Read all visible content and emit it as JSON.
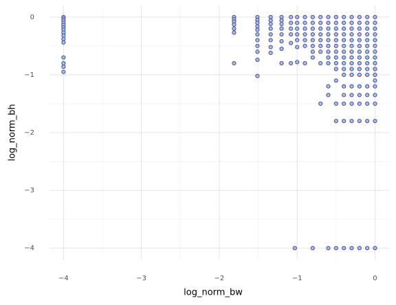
{
  "chart_data": {
    "type": "scatter",
    "x_label": "log_norm_bw",
    "y_label": "log_norm_bh",
    "x": [
      -4,
      -4,
      -4,
      -4,
      -4,
      -4,
      -4,
      -4,
      -4,
      -4,
      -4,
      -4,
      -4,
      -4,
      -4,
      -1.81,
      -1.81,
      -1.81,
      -1.81,
      -1.81,
      -1.81,
      -1.81,
      -1.51,
      -1.51,
      -1.51,
      -1.51,
      -1.51,
      -1.51,
      -1.51,
      -1.51,
      -1.51,
      -1.51,
      -1.51,
      -1.34,
      -1.34,
      -1.34,
      -1.34,
      -1.34,
      -1.34,
      -1.34,
      -1.34,
      -1.2,
      -1.2,
      -1.2,
      -1.2,
      -1.2,
      -1.2,
      -1.2,
      -1.2,
      -1.08,
      -1.08,
      -1.08,
      -1.08,
      -1.08,
      -1.08,
      -1,
      -1,
      -1,
      -1,
      -1,
      -1,
      -1,
      -0.9,
      -0.9,
      -0.9,
      -0.9,
      -0.9,
      -0.9,
      -0.9,
      -0.8,
      -0.8,
      -0.8,
      -0.8,
      -0.8,
      -0.8,
      -0.8,
      -0.8,
      -0.8,
      -0.7,
      -0.7,
      -0.7,
      -0.7,
      -0.7,
      -0.7,
      -0.7,
      -0.7,
      -0.7,
      -0.6,
      -0.6,
      -0.6,
      -0.6,
      -0.6,
      -0.6,
      -0.6,
      -0.6,
      -0.6,
      -0.6,
      -0.6,
      -0.6,
      -0.5,
      -0.5,
      -0.5,
      -0.5,
      -0.5,
      -0.5,
      -0.5,
      -0.5,
      -0.5,
      -0.5,
      -0.5,
      -0.5,
      -0.5,
      -0.5,
      -0.4,
      -0.4,
      -0.4,
      -0.4,
      -0.4,
      -0.4,
      -0.4,
      -0.4,
      -0.4,
      -0.4,
      -0.4,
      -0.4,
      -0.4,
      -0.4,
      -0.4,
      -0.4,
      -0.3,
      -0.3,
      -0.3,
      -0.3,
      -0.3,
      -0.3,
      -0.3,
      -0.3,
      -0.3,
      -0.3,
      -0.3,
      -0.3,
      -0.3,
      -0.3,
      -0.3,
      -0.3,
      -0.2,
      -0.2,
      -0.2,
      -0.2,
      -0.2,
      -0.2,
      -0.2,
      -0.2,
      -0.2,
      -0.2,
      -0.2,
      -0.2,
      -0.2,
      -0.2,
      -0.2,
      -0.2,
      -0.1,
      -0.1,
      -0.1,
      -0.1,
      -0.1,
      -0.1,
      -0.1,
      -0.1,
      -0.1,
      -0.1,
      -0.1,
      -0.1,
      -0.1,
      -0.1,
      -0.1,
      -0.1,
      0,
      0,
      0,
      0,
      0,
      0,
      0,
      0,
      0,
      0,
      0,
      0,
      0,
      0,
      0,
      0,
      0,
      -1.03
    ],
    "values": [
      0,
      -0.03,
      -0.06,
      -0.1,
      -0.14,
      -0.18,
      -0.22,
      -0.27,
      -0.32,
      -0.38,
      -0.44,
      -0.7,
      -0.8,
      -0.86,
      -0.95,
      0,
      -0.04,
      -0.08,
      -0.13,
      -0.2,
      -0.27,
      -0.8,
      0,
      -0.05,
      -0.1,
      -0.16,
      -0.22,
      -0.3,
      -0.4,
      -0.5,
      -0.6,
      -0.74,
      -1.02,
      0,
      -0.06,
      -0.12,
      -0.2,
      -0.3,
      -0.4,
      -0.52,
      -0.62,
      0,
      -0.06,
      -0.12,
      -0.2,
      -0.3,
      -0.42,
      -0.55,
      -0.8,
      0,
      -0.1,
      -0.2,
      -0.3,
      -0.45,
      -0.8,
      0,
      -0.1,
      -0.2,
      -0.3,
      -0.4,
      -0.52,
      -0.78,
      0,
      -0.1,
      -0.2,
      -0.3,
      -0.4,
      -0.5,
      -0.8,
      0,
      -0.1,
      -0.2,
      -0.3,
      -0.4,
      -0.5,
      -0.6,
      -0.7,
      -4,
      0,
      -0.1,
      -0.2,
      -0.3,
      -0.4,
      -0.5,
      -0.6,
      -0.8,
      -1.5,
      0,
      -0.1,
      -0.2,
      -0.3,
      -0.4,
      -0.5,
      -0.6,
      -0.7,
      -0.8,
      -1.2,
      -1.35,
      -4,
      0,
      -0.1,
      -0.2,
      -0.3,
      -0.4,
      -0.5,
      -0.6,
      -0.7,
      -0.8,
      -0.9,
      -1.1,
      -1.5,
      -1.8,
      -4,
      0,
      -0.1,
      -0.2,
      -0.3,
      -0.4,
      -0.5,
      -0.6,
      -0.7,
      -0.8,
      -0.9,
      -1,
      -1.2,
      -1.35,
      -1.5,
      -1.8,
      -4,
      0,
      -0.1,
      -0.2,
      -0.3,
      -0.4,
      -0.5,
      -0.6,
      -0.7,
      -0.8,
      -0.9,
      -1,
      -1.2,
      -1.35,
      -1.5,
      -1.8,
      -4,
      0,
      -0.1,
      -0.2,
      -0.3,
      -0.4,
      -0.5,
      -0.6,
      -0.7,
      -0.8,
      -0.9,
      -1,
      -1.2,
      -1.35,
      -1.5,
      -1.8,
      -4,
      0,
      -0.1,
      -0.2,
      -0.3,
      -0.4,
      -0.5,
      -0.6,
      -0.7,
      -0.8,
      -0.9,
      -1,
      -1.2,
      -1.35,
      -1.5,
      -1.8,
      -4,
      0,
      -0.1,
      -0.2,
      -0.3,
      -0.4,
      -0.5,
      -0.6,
      -0.7,
      -0.8,
      -0.9,
      -1,
      -1.1,
      -1.2,
      -1.35,
      -1.5,
      -1.8,
      -4,
      -4
    ],
    "color": "#87ceeb",
    "edge_color": "#6a3d9a",
    "xlim": [
      -4.18,
      0.19
    ],
    "ylim": [
      -4.2,
      0.2
    ],
    "xticks": [
      {
        "value": -4,
        "label": "−4"
      },
      {
        "value": -3,
        "label": "−3"
      },
      {
        "value": -2,
        "label": "−2"
      },
      {
        "value": -1,
        "label": "−1"
      },
      0
    ],
    "yticks": [
      {
        "value": -4,
        "label": "−4"
      },
      {
        "value": -3,
        "label": "−3"
      },
      {
        "value": -2,
        "label": "−2"
      },
      {
        "value": -1,
        "label": "−1"
      },
      0
    ],
    "grid": true,
    "minor_grid": true
  }
}
